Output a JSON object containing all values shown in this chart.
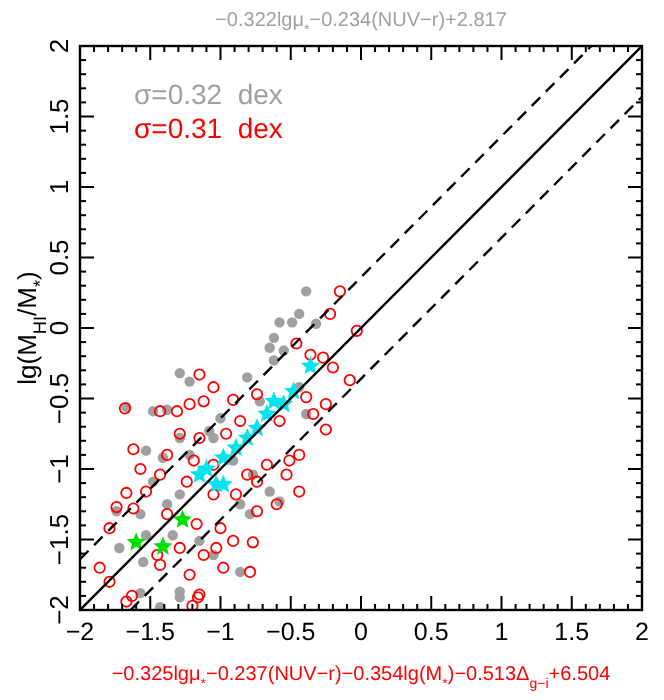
{
  "chart_data": {
    "type": "scatter",
    "title": "−0.322lgμ$_{*}$−0.234(NUV−r)+2.817",
    "xlabel": "−0.325lgμ$_{*}$−0.237(NUV−r)−0.354lg(M$_{*}$)−0.513Δ$_{g−i}$+6.504",
    "ylabel": "lg(M$_{HI}$/M$_{*}$)",
    "annotations": [
      "σ=0.32  dex",
      "σ=0.31  dex"
    ],
    "xlim": [
      -2,
      2
    ],
    "ylim": [
      -2,
      2
    ],
    "xticks": [
      {
        "value": -2,
        "label": "−2"
      },
      {
        "value": -1.9,
        "label": null
      },
      {
        "value": -1.8,
        "label": null
      },
      {
        "value": -1.7,
        "label": null
      },
      {
        "value": -1.6,
        "label": null
      },
      {
        "value": -1.5,
        "label": "−1.5"
      },
      {
        "value": -1.4,
        "label": null
      },
      {
        "value": -1.3,
        "label": null
      },
      {
        "value": -1.2,
        "label": null
      },
      {
        "value": -1.1,
        "label": null
      },
      {
        "value": -1,
        "label": "−1"
      },
      {
        "value": -0.9,
        "label": null
      },
      {
        "value": -0.8,
        "label": null
      },
      {
        "value": -0.7,
        "label": null
      },
      {
        "value": -0.6,
        "label": null
      },
      {
        "value": -0.5,
        "label": "−0.5"
      },
      {
        "value": -0.4,
        "label": null
      },
      {
        "value": -0.3,
        "label": null
      },
      {
        "value": -0.2,
        "label": null
      },
      {
        "value": -0.1,
        "label": null
      },
      0,
      {
        "value": 0.1,
        "label": null
      },
      {
        "value": 0.2,
        "label": null
      },
      {
        "value": 0.3,
        "label": null
      },
      {
        "value": 0.4,
        "label": null
      },
      0.5,
      {
        "value": 0.6,
        "label": null
      },
      {
        "value": 0.7,
        "label": null
      },
      {
        "value": 0.8,
        "label": null
      },
      {
        "value": 0.9,
        "label": null
      },
      1,
      {
        "value": 1.1,
        "label": null
      },
      {
        "value": 1.2,
        "label": null
      },
      {
        "value": 1.3,
        "label": null
      },
      {
        "value": 1.4,
        "label": null
      },
      1.5,
      {
        "value": 1.6,
        "label": null
      },
      {
        "value": 1.7,
        "label": null
      },
      {
        "value": 1.8,
        "label": null
      },
      {
        "value": 1.9,
        "label": null
      },
      2
    ],
    "yticks": [
      {
        "value": -2,
        "label": "−2"
      },
      {
        "value": -1.9,
        "label": null
      },
      {
        "value": -1.8,
        "label": null
      },
      {
        "value": -1.7,
        "label": null
      },
      {
        "value": -1.6,
        "label": null
      },
      {
        "value": -1.5,
        "label": "−1.5"
      },
      {
        "value": -1.4,
        "label": null
      },
      {
        "value": -1.3,
        "label": null
      },
      {
        "value": -1.2,
        "label": null
      },
      {
        "value": -1.1,
        "label": null
      },
      {
        "value": -1,
        "label": "−1"
      },
      {
        "value": -0.9,
        "label": null
      },
      {
        "value": -0.8,
        "label": null
      },
      {
        "value": -0.7,
        "label": null
      },
      {
        "value": -0.6,
        "label": null
      },
      {
        "value": -0.5,
        "label": "−0.5"
      },
      {
        "value": -0.4,
        "label": null
      },
      {
        "value": -0.3,
        "label": null
      },
      {
        "value": -0.2,
        "label": null
      },
      {
        "value": -0.1,
        "label": null
      },
      0,
      {
        "value": 0.1,
        "label": null
      },
      {
        "value": 0.2,
        "label": null
      },
      {
        "value": 0.3,
        "label": null
      },
      {
        "value": 0.4,
        "label": null
      },
      0.5,
      {
        "value": 0.6,
        "label": null
      },
      {
        "value": 0.7,
        "label": null
      },
      {
        "value": 0.8,
        "label": null
      },
      {
        "value": 0.9,
        "label": null
      },
      1,
      {
        "value": 1.1,
        "label": null
      },
      {
        "value": 1.2,
        "label": null
      },
      {
        "value": 1.3,
        "label": null
      },
      {
        "value": 1.4,
        "label": null
      },
      1.5,
      {
        "value": 1.6,
        "label": null
      },
      {
        "value": 1.7,
        "label": null
      },
      {
        "value": 1.8,
        "label": null
      },
      {
        "value": 1.9,
        "label": null
      },
      2
    ],
    "series": [
      {
        "marker": "circle",
        "color": "#a0a0a0",
        "x": [
          -0.39,
          -0.58,
          -0.49,
          -0.44,
          -0.32,
          -0.62,
          -0.65,
          -0.55,
          -0.62,
          -0.81,
          -1.29,
          -1.22,
          -1.67,
          -1.48,
          -1.38,
          -1.0,
          -1.08,
          -1.29,
          -1.53,
          -1.41,
          -1.22,
          -0.91,
          -0.77,
          -0.65,
          -0.58,
          -0.86,
          -1.29,
          -1.48,
          -1.74,
          -1.57,
          -1.38,
          -1.53,
          -1.34,
          -1.15,
          -1.05,
          -0.86,
          -1.29,
          -1.55,
          -1.72,
          -0.39,
          -0.72,
          -0.44,
          -1.05,
          -0.79,
          -1.57,
          -1.43,
          -1.29
        ],
        "values": [
          0.26,
          0.04,
          0.04,
          0.1,
          0.03,
          -0.07,
          -0.14,
          -0.16,
          -0.23,
          -0.35,
          -0.32,
          -0.38,
          -0.56,
          -0.59,
          -0.58,
          -0.64,
          -0.73,
          -0.78,
          -0.87,
          -0.92,
          -0.9,
          -0.94,
          -1.04,
          -1.16,
          -1.23,
          -1.25,
          -1.18,
          -1.09,
          -1.3,
          -1.32,
          -1.25,
          -1.47,
          -1.47,
          -1.51,
          -1.61,
          -1.73,
          -1.87,
          -1.66,
          -1.56,
          -0.61,
          -0.52,
          -0.42,
          -0.78,
          -1.32,
          -1.88,
          -1.98,
          -1.91
        ]
      },
      {
        "marker": "circle",
        "color": "#ff0000",
        "x": [
          -0.15,
          -0.22,
          -0.03,
          -0.46,
          -0.36,
          -0.27,
          -0.2,
          -0.08,
          -1.15,
          -1.05,
          -0.91,
          -1.68,
          -1.43,
          -1.31,
          -1.22,
          -1.12,
          -0.74,
          -0.39,
          -0.25,
          -0.34,
          -0.25,
          -0.58,
          -0.86,
          -0.96,
          -1.15,
          -1.29,
          -1.62,
          -1.38,
          -1.19,
          -1.57,
          -1.05,
          -0.81,
          -0.67,
          -0.51,
          -0.44,
          -0.53,
          -0.44,
          -0.74,
          -0.89,
          -1.05,
          -1.24,
          -1.43,
          -1.67,
          -1.53,
          -1.74,
          -1.62,
          -1.38,
          -1.17,
          -1.0,
          -0.74,
          -0.6,
          -0.91,
          -0.77,
          -1.03,
          -1.12,
          -1.29,
          -1.45,
          -1.79,
          -1.86,
          -1.79,
          -1.43,
          -1.22,
          -0.98,
          -0.79,
          -1.15,
          -1.67,
          -1.63,
          -1.2,
          -1.16
        ],
        "values": [
          0.26,
          0.1,
          -0.02,
          -0.11,
          -0.19,
          -0.21,
          -0.28,
          -0.37,
          -0.33,
          -0.42,
          -0.51,
          -0.57,
          -0.59,
          -0.59,
          -0.54,
          -0.52,
          -0.47,
          -0.49,
          -0.54,
          -0.61,
          -0.72,
          -0.66,
          -0.66,
          -0.75,
          -0.78,
          -0.75,
          -0.86,
          -0.9,
          -0.94,
          -1.0,
          -0.97,
          -1.04,
          -0.97,
          -0.94,
          -0.9,
          -1.04,
          -1.16,
          -1.09,
          -1.18,
          -1.18,
          -1.09,
          -1.04,
          -1.17,
          -1.16,
          -1.27,
          -1.28,
          -1.32,
          -1.39,
          -1.42,
          -1.3,
          -1.25,
          -1.51,
          -1.52,
          -1.56,
          -1.61,
          -1.56,
          -1.61,
          -1.42,
          -1.7,
          -1.8,
          -1.68,
          -1.75,
          -1.7,
          -1.73,
          -1.89,
          -1.94,
          -1.9,
          -1.97,
          -1.91
        ]
      },
      {
        "marker": "star",
        "color": "#00e5ee",
        "x": [
          -0.36,
          -0.48,
          -0.62,
          -0.55,
          -0.67,
          -0.74,
          -0.81,
          -0.89,
          -0.98,
          -1.1,
          -1.15,
          -1.03,
          -0.98
        ],
        "values": [
          -0.27,
          -0.45,
          -0.52,
          -0.54,
          -0.61,
          -0.71,
          -0.78,
          -0.85,
          -0.92,
          -1.0,
          -1.04,
          -1.11,
          -1.11
        ]
      },
      {
        "marker": "star",
        "color": "#00dd00",
        "x": [
          -1.6,
          -1.41,
          -1.27
        ],
        "values": [
          -1.52,
          -1.55,
          -1.36
        ]
      },
      {
        "type": "line",
        "line_style": "solid",
        "color": "#000000",
        "x": [
          -2,
          2
        ],
        "values": [
          -2,
          2
        ]
      },
      {
        "type": "line",
        "line_style": "dashed",
        "color": "#000000",
        "x": [
          -2,
          1.64
        ],
        "values": [
          -1.64,
          2
        ]
      },
      {
        "type": "line",
        "line_style": "dashed",
        "color": "#000000",
        "x": [
          -1.64,
          2
        ],
        "values": [
          -2,
          1.64
        ]
      }
    ]
  }
}
